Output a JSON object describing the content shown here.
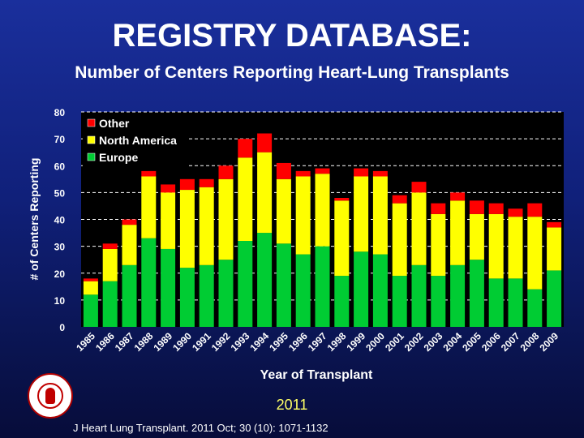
{
  "header": {
    "title": "REGISTRY DATABASE:",
    "subtitle": "Number of Centers Reporting Heart-Lung Transplants"
  },
  "footer": {
    "year": "2011",
    "citation": "J Heart Lung Transplant. 2011 Oct; 30 (10): 1071-1132"
  },
  "colors": {
    "europe": "#00cc33",
    "north_america": "#ffff00",
    "other": "#ff0000",
    "plot_background": "#000000",
    "text": "#ffffff",
    "footer_year": "#ffff66"
  },
  "chart_data": {
    "type": "bar",
    "stacked": true,
    "title": "Number of Centers Reporting Heart-Lung Transplants",
    "xlabel": "Year of Transplant",
    "ylabel": "# of Centers Reporting",
    "ylim": [
      0,
      80
    ],
    "yticks": [
      0,
      10,
      20,
      30,
      40,
      50,
      60,
      70,
      80
    ],
    "grid": "horizontal dashed",
    "legend_position": "top-left",
    "categories": [
      "1985",
      "1986",
      "1987",
      "1988",
      "1989",
      "1990",
      "1991",
      "1992",
      "1993",
      "1994",
      "1995",
      "1996",
      "1997",
      "1998",
      "1999",
      "2000",
      "2001",
      "2002",
      "2003",
      "2004",
      "2005",
      "2006",
      "2007",
      "2008",
      "2009"
    ],
    "series": [
      {
        "name": "Europe",
        "color": "#00cc33",
        "values": [
          12,
          17,
          23,
          33,
          29,
          22,
          23,
          25,
          32,
          35,
          31,
          27,
          30,
          19,
          28,
          27,
          19,
          23,
          19,
          23,
          25,
          18,
          18,
          14,
          21
        ]
      },
      {
        "name": "North America",
        "color": "#ffff00",
        "values": [
          5,
          12,
          15,
          23,
          21,
          29,
          29,
          30,
          31,
          30,
          24,
          29,
          27,
          28,
          28,
          29,
          27,
          27,
          23,
          24,
          17,
          24,
          23,
          27,
          16
        ]
      },
      {
        "name": "Other",
        "color": "#ff0000",
        "values": [
          1,
          2,
          2,
          2,
          3,
          4,
          3,
          5,
          7,
          7,
          6,
          2,
          2,
          1,
          3,
          2,
          3,
          4,
          4,
          3,
          5,
          4,
          3,
          5,
          2
        ]
      }
    ]
  }
}
